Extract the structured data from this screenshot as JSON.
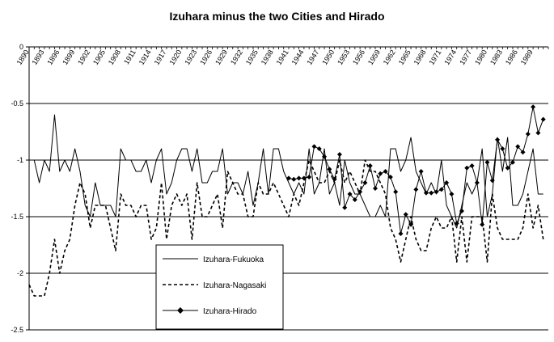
{
  "chart_data": {
    "type": "line",
    "title": "Izuhara minus the two Cities and Hirado",
    "xlabel": "",
    "ylabel": "",
    "ylim": [
      -2.5,
      0
    ],
    "yticks": [
      0,
      -0.5,
      -1,
      -1.5,
      -2,
      -2.5
    ],
    "ytick_labels": [
      "0",
      "-0.5",
      "-1",
      "-1.5",
      "-2",
      "-2.5"
    ],
    "xlim": [
      1890,
      1992
    ],
    "xtick_labels": [
      "1890",
      "1893",
      "1896",
      "1899",
      "1902",
      "1905",
      "1908",
      "1911",
      "1914",
      "1917",
      "1920",
      "1923",
      "1926",
      "1929",
      "1932",
      "1935",
      "1938",
      "1941",
      "1944",
      "1947",
      "1950",
      "1953",
      "1956",
      "1959",
      "1962",
      "1965",
      "1968",
      "1971",
      "1974",
      "1977",
      "1980",
      "1983",
      "1986",
      "1989"
    ],
    "grid": "horizontal",
    "legend_placement": "bottom-center",
    "colors": {
      "line": "#000000",
      "grid": "#000000",
      "background": "#ffffff"
    },
    "series": [
      {
        "name": "Izuhara-Fukuoka",
        "style": "solid",
        "points": [
          [
            1891,
            -1.0
          ],
          [
            1892,
            -1.2
          ],
          [
            1893,
            -1.0
          ],
          [
            1894,
            -1.1
          ],
          [
            1895,
            -0.6
          ],
          [
            1896,
            -1.1
          ],
          [
            1897,
            -1.0
          ],
          [
            1898,
            -1.1
          ],
          [
            1899,
            -0.9
          ],
          [
            1900,
            -1.1
          ],
          [
            1901,
            -1.4
          ],
          [
            1902,
            -1.5
          ],
          [
            1903,
            -1.2
          ],
          [
            1904,
            -1.4
          ],
          [
            1905,
            -1.4
          ],
          [
            1906,
            -1.4
          ],
          [
            1907,
            -1.5
          ],
          [
            1908,
            -0.9
          ],
          [
            1909,
            -1.0
          ],
          [
            1910,
            -1.0
          ],
          [
            1911,
            -1.1
          ],
          [
            1912,
            -1.1
          ],
          [
            1913,
            -1.0
          ],
          [
            1914,
            -1.2
          ],
          [
            1915,
            -1.0
          ],
          [
            1916,
            -0.9
          ],
          [
            1917,
            -1.3
          ],
          [
            1918,
            -1.2
          ],
          [
            1919,
            -1.0
          ],
          [
            1920,
            -0.9
          ],
          [
            1921,
            -0.9
          ],
          [
            1922,
            -1.1
          ],
          [
            1923,
            -0.9
          ],
          [
            1924,
            -1.2
          ],
          [
            1925,
            -1.2
          ],
          [
            1926,
            -1.1
          ],
          [
            1927,
            -1.1
          ],
          [
            1928,
            -0.9
          ],
          [
            1929,
            -1.3
          ],
          [
            1930,
            -1.2
          ],
          [
            1931,
            -1.2
          ],
          [
            1932,
            -1.3
          ],
          [
            1933,
            -1.1
          ],
          [
            1934,
            -1.4
          ],
          [
            1935,
            -1.2
          ],
          [
            1936,
            -0.9
          ],
          [
            1937,
            -1.3
          ],
          [
            1938,
            -0.9
          ],
          [
            1939,
            -0.9
          ],
          [
            1940,
            -1.1
          ],
          [
            1941,
            -1.2
          ],
          [
            1942,
            -1.3
          ],
          [
            1943,
            -1.2
          ],
          [
            1944,
            -1.3
          ],
          [
            1945,
            -0.9
          ],
          [
            1946,
            -1.3
          ],
          [
            1947,
            -1.2
          ],
          [
            1948,
            -0.9
          ],
          [
            1949,
            -1.3
          ],
          [
            1950,
            -1.2
          ],
          [
            1951,
            -1.4
          ],
          [
            1952,
            -1.0
          ],
          [
            1953,
            -1.2
          ],
          [
            1954,
            -1.3
          ],
          [
            1955,
            -1.3
          ],
          [
            1956,
            -1.4
          ],
          [
            1957,
            -1.5
          ],
          [
            1958,
            -1.5
          ],
          [
            1959,
            -1.4
          ],
          [
            1960,
            -1.5
          ],
          [
            1961,
            -0.9
          ],
          [
            1962,
            -0.9
          ],
          [
            1963,
            -1.1
          ],
          [
            1964,
            -1.0
          ],
          [
            1965,
            -0.8
          ],
          [
            1966,
            -1.1
          ],
          [
            1967,
            -1.2
          ],
          [
            1968,
            -1.3
          ],
          [
            1969,
            -1.2
          ],
          [
            1970,
            -1.3
          ],
          [
            1971,
            -1.0
          ],
          [
            1972,
            -1.4
          ],
          [
            1973,
            -1.5
          ],
          [
            1974,
            -1.6
          ],
          [
            1975,
            -1.4
          ],
          [
            1976,
            -1.2
          ],
          [
            1977,
            -1.3
          ],
          [
            1978,
            -1.2
          ],
          [
            1979,
            -0.9
          ],
          [
            1980,
            -1.5
          ],
          [
            1981,
            -1.3
          ],
          [
            1982,
            -0.8
          ],
          [
            1983,
            -1.1
          ],
          [
            1984,
            -0.8
          ],
          [
            1985,
            -1.4
          ],
          [
            1986,
            -1.4
          ],
          [
            1987,
            -1.3
          ],
          [
            1988,
            -1.1
          ],
          [
            1989,
            -0.9
          ],
          [
            1990,
            -1.3
          ],
          [
            1991,
            -1.3
          ]
        ]
      },
      {
        "name": "Izuhara-Nagasaki",
        "style": "dashed",
        "points": [
          [
            1890,
            -2.1
          ],
          [
            1891,
            -2.2
          ],
          [
            1892,
            -2.2
          ],
          [
            1893,
            -2.2
          ],
          [
            1894,
            -2.0
          ],
          [
            1895,
            -1.7
          ],
          [
            1896,
            -2.0
          ],
          [
            1897,
            -1.8
          ],
          [
            1898,
            -1.7
          ],
          [
            1899,
            -1.4
          ],
          [
            1900,
            -1.2
          ],
          [
            1901,
            -1.3
          ],
          [
            1902,
            -1.6
          ],
          [
            1903,
            -1.4
          ],
          [
            1904,
            -1.4
          ],
          [
            1905,
            -1.4
          ],
          [
            1906,
            -1.6
          ],
          [
            1907,
            -1.8
          ],
          [
            1908,
            -1.3
          ],
          [
            1909,
            -1.4
          ],
          [
            1910,
            -1.4
          ],
          [
            1911,
            -1.5
          ],
          [
            1912,
            -1.4
          ],
          [
            1913,
            -1.4
          ],
          [
            1914,
            -1.7
          ],
          [
            1915,
            -1.6
          ],
          [
            1916,
            -1.2
          ],
          [
            1917,
            -1.7
          ],
          [
            1918,
            -1.4
          ],
          [
            1919,
            -1.3
          ],
          [
            1920,
            -1.4
          ],
          [
            1921,
            -1.3
          ],
          [
            1922,
            -1.7
          ],
          [
            1923,
            -1.2
          ],
          [
            1924,
            -1.5
          ],
          [
            1925,
            -1.5
          ],
          [
            1926,
            -1.4
          ],
          [
            1927,
            -1.3
          ],
          [
            1928,
            -1.6
          ],
          [
            1929,
            -1.1
          ],
          [
            1930,
            -1.2
          ],
          [
            1931,
            -1.3
          ],
          [
            1932,
            -1.3
          ],
          [
            1933,
            -1.5
          ],
          [
            1934,
            -1.5
          ],
          [
            1935,
            -1.2
          ],
          [
            1936,
            -1.3
          ],
          [
            1937,
            -1.3
          ],
          [
            1938,
            -1.2
          ],
          [
            1939,
            -1.3
          ],
          [
            1940,
            -1.4
          ],
          [
            1941,
            -1.5
          ],
          [
            1942,
            -1.3
          ],
          [
            1943,
            -1.4
          ],
          [
            1944,
            -1.2
          ],
          [
            1945,
            -1.0
          ],
          [
            1946,
            -1.1
          ],
          [
            1947,
            -1.2
          ],
          [
            1948,
            -1.2
          ],
          [
            1949,
            -1.1
          ],
          [
            1950,
            -1.2
          ],
          [
            1951,
            -1.0
          ],
          [
            1952,
            -1.2
          ],
          [
            1953,
            -1.1
          ],
          [
            1954,
            -1.2
          ],
          [
            1955,
            -1.3
          ],
          [
            1956,
            -1.0
          ],
          [
            1957,
            -1.1
          ],
          [
            1958,
            -1.1
          ],
          [
            1959,
            -1.2
          ],
          [
            1960,
            -1.3
          ],
          [
            1961,
            -1.6
          ],
          [
            1962,
            -1.7
          ],
          [
            1963,
            -1.9
          ],
          [
            1964,
            -1.7
          ],
          [
            1965,
            -1.5
          ],
          [
            1966,
            -1.7
          ],
          [
            1967,
            -1.8
          ],
          [
            1968,
            -1.8
          ],
          [
            1969,
            -1.6
          ],
          [
            1970,
            -1.5
          ],
          [
            1971,
            -1.6
          ],
          [
            1972,
            -1.6
          ],
          [
            1973,
            -1.5
          ],
          [
            1974,
            -1.9
          ],
          [
            1975,
            -1.5
          ],
          [
            1976,
            -1.9
          ],
          [
            1977,
            -1.5
          ],
          [
            1978,
            -1.5
          ],
          [
            1979,
            -1.5
          ],
          [
            1980,
            -1.9
          ],
          [
            1981,
            -1.3
          ],
          [
            1982,
            -1.6
          ],
          [
            1983,
            -1.7
          ],
          [
            1984,
            -1.7
          ],
          [
            1985,
            -1.7
          ],
          [
            1986,
            -1.7
          ],
          [
            1987,
            -1.6
          ],
          [
            1988,
            -1.3
          ],
          [
            1989,
            -1.6
          ],
          [
            1990,
            -1.4
          ],
          [
            1991,
            -1.7
          ]
        ]
      },
      {
        "name": "Izuhara-Hirado",
        "style": "solid-markers",
        "points": [
          [
            1941,
            -1.16
          ],
          [
            1942,
            -1.17
          ],
          [
            1943,
            -1.16
          ],
          [
            1944,
            -1.16
          ],
          [
            1945,
            -1.15
          ],
          [
            1946,
            -0.88
          ],
          [
            1947,
            -0.9
          ],
          [
            1948,
            -0.97
          ],
          [
            1949,
            -1.08
          ],
          [
            1950,
            -1.17
          ],
          [
            1951,
            -0.95
          ],
          [
            1952,
            -1.42
          ],
          [
            1953,
            -1.3
          ],
          [
            1954,
            -1.35
          ],
          [
            1955,
            -1.28
          ],
          [
            1956,
            -1.2
          ],
          [
            1957,
            -1.05
          ],
          [
            1958,
            -1.25
          ],
          [
            1959,
            -1.12
          ],
          [
            1960,
            -1.1
          ],
          [
            1961,
            -1.15
          ],
          [
            1962,
            -1.28
          ],
          [
            1963,
            -1.65
          ],
          [
            1964,
            -1.48
          ],
          [
            1965,
            -1.57
          ],
          [
            1966,
            -1.26
          ],
          [
            1967,
            -1.1
          ],
          [
            1968,
            -1.29
          ],
          [
            1969,
            -1.29
          ],
          [
            1970,
            -1.28
          ],
          [
            1971,
            -1.26
          ],
          [
            1972,
            -1.2
          ],
          [
            1973,
            -1.3
          ],
          [
            1974,
            -1.56
          ],
          [
            1975,
            -1.45
          ],
          [
            1976,
            -1.07
          ],
          [
            1977,
            -1.05
          ],
          [
            1978,
            -1.2
          ],
          [
            1979,
            -1.57
          ],
          [
            1980,
            -1.02
          ],
          [
            1981,
            -1.18
          ],
          [
            1982,
            -0.82
          ],
          [
            1983,
            -0.9
          ],
          [
            1984,
            -1.07
          ],
          [
            1985,
            -1.02
          ],
          [
            1986,
            -0.88
          ],
          [
            1987,
            -0.93
          ],
          [
            1988,
            -0.77
          ],
          [
            1989,
            -0.53
          ],
          [
            1990,
            -0.76
          ],
          [
            1991,
            -0.64
          ]
        ]
      }
    ]
  }
}
